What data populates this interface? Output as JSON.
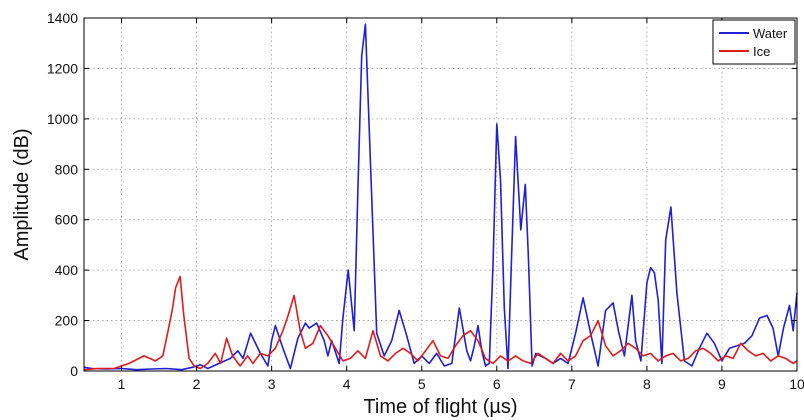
{
  "chart_data": {
    "type": "line",
    "title": "",
    "xlabel": "Time of flight (µs)",
    "ylabel": "Amplitude (dB)",
    "xlim": [
      0.5,
      10
    ],
    "ylim": [
      0,
      1400
    ],
    "xticks": [
      1,
      2,
      3,
      4,
      5,
      6,
      7,
      8,
      9,
      10
    ],
    "yticks": [
      0,
      200,
      400,
      600,
      800,
      1000,
      1200,
      1400
    ],
    "grid": true,
    "legend_position": "top-right",
    "series": [
      {
        "name": "Water",
        "color": "#1f1fd6",
        "x": [
          0.5,
          0.6,
          0.8,
          1.0,
          1.2,
          1.4,
          1.6,
          1.8,
          1.95,
          2.05,
          2.15,
          2.3,
          2.45,
          2.55,
          2.62,
          2.72,
          2.85,
          2.95,
          3.0,
          3.05,
          3.15,
          3.25,
          3.35,
          3.45,
          3.5,
          3.6,
          3.7,
          3.75,
          3.8,
          3.9,
          3.95,
          4.02,
          4.1,
          4.15,
          4.2,
          4.25,
          4.32,
          4.4,
          4.5,
          4.6,
          4.7,
          4.8,
          4.9,
          5.0,
          5.1,
          5.2,
          5.3,
          5.4,
          5.5,
          5.6,
          5.65,
          5.7,
          5.75,
          5.8,
          5.85,
          5.9,
          5.95,
          6.0,
          6.05,
          6.1,
          6.15,
          6.2,
          6.25,
          6.32,
          6.38,
          6.42,
          6.47,
          6.52,
          6.58,
          6.65,
          6.75,
          6.85,
          6.95,
          7.05,
          7.15,
          7.25,
          7.35,
          7.45,
          7.55,
          7.62,
          7.7,
          7.8,
          7.85,
          7.92,
          8.0,
          8.05,
          8.1,
          8.15,
          8.2,
          8.25,
          8.32,
          8.4,
          8.5,
          8.6,
          8.7,
          8.8,
          8.9,
          9.0,
          9.1,
          9.2,
          9.3,
          9.4,
          9.5,
          9.6,
          9.68,
          9.75,
          9.82,
          9.9,
          9.95,
          10.0
        ],
        "y": [
          15,
          10,
          8,
          10,
          5,
          8,
          10,
          5,
          15,
          25,
          10,
          30,
          50,
          80,
          50,
          150,
          70,
          20,
          120,
          180,
          90,
          10,
          130,
          190,
          170,
          190,
          120,
          60,
          120,
          30,
          210,
          400,
          160,
          720,
          1250,
          1375,
          800,
          150,
          60,
          120,
          240,
          140,
          30,
          60,
          30,
          70,
          20,
          30,
          250,
          80,
          40,
          100,
          180,
          80,
          20,
          30,
          420,
          980,
          760,
          250,
          10,
          480,
          930,
          560,
          740,
          460,
          20,
          70,
          60,
          50,
          30,
          50,
          30,
          150,
          290,
          150,
          20,
          240,
          270,
          160,
          60,
          300,
          120,
          40,
          350,
          410,
          390,
          280,
          30,
          520,
          650,
          310,
          40,
          20,
          90,
          150,
          110,
          40,
          90,
          100,
          110,
          140,
          210,
          220,
          170,
          60,
          170,
          260,
          160,
          310
        ]
      },
      {
        "name": "Ice",
        "color": "#e01b1b",
        "x": [
          0.5,
          0.7,
          0.9,
          1.1,
          1.3,
          1.45,
          1.55,
          1.62,
          1.68,
          1.72,
          1.78,
          1.83,
          1.9,
          1.97,
          2.05,
          2.15,
          2.25,
          2.32,
          2.4,
          2.48,
          2.58,
          2.68,
          2.75,
          2.85,
          2.95,
          3.05,
          3.15,
          3.22,
          3.3,
          3.38,
          3.45,
          3.55,
          3.65,
          3.75,
          3.85,
          3.95,
          4.05,
          4.15,
          4.25,
          4.35,
          4.45,
          4.55,
          4.65,
          4.75,
          4.85,
          4.95,
          5.05,
          5.15,
          5.25,
          5.35,
          5.45,
          5.55,
          5.65,
          5.75,
          5.85,
          5.95,
          6.05,
          6.15,
          6.25,
          6.35,
          6.45,
          6.55,
          6.65,
          6.75,
          6.85,
          6.95,
          7.05,
          7.15,
          7.25,
          7.35,
          7.45,
          7.55,
          7.65,
          7.75,
          7.85,
          7.95,
          8.05,
          8.15,
          8.25,
          8.35,
          8.45,
          8.55,
          8.65,
          8.75,
          8.85,
          8.95,
          9.05,
          9.15,
          9.25,
          9.35,
          9.45,
          9.55,
          9.65,
          9.75,
          9.85,
          9.95,
          10.0
        ],
        "y": [
          5,
          10,
          10,
          30,
          60,
          40,
          60,
          160,
          250,
          330,
          375,
          220,
          50,
          20,
          10,
          30,
          70,
          30,
          130,
          60,
          20,
          60,
          30,
          70,
          60,
          90,
          160,
          220,
          300,
          160,
          90,
          110,
          180,
          140,
          90,
          40,
          50,
          80,
          50,
          160,
          60,
          40,
          70,
          90,
          70,
          40,
          80,
          120,
          60,
          50,
          100,
          140,
          160,
          120,
          50,
          30,
          60,
          40,
          60,
          40,
          30,
          70,
          50,
          30,
          70,
          40,
          60,
          120,
          140,
          200,
          100,
          60,
          80,
          110,
          90,
          60,
          70,
          40,
          60,
          70,
          40,
          50,
          80,
          90,
          70,
          40,
          60,
          50,
          110,
          80,
          60,
          70,
          40,
          60,
          50,
          30,
          40
        ]
      }
    ]
  }
}
